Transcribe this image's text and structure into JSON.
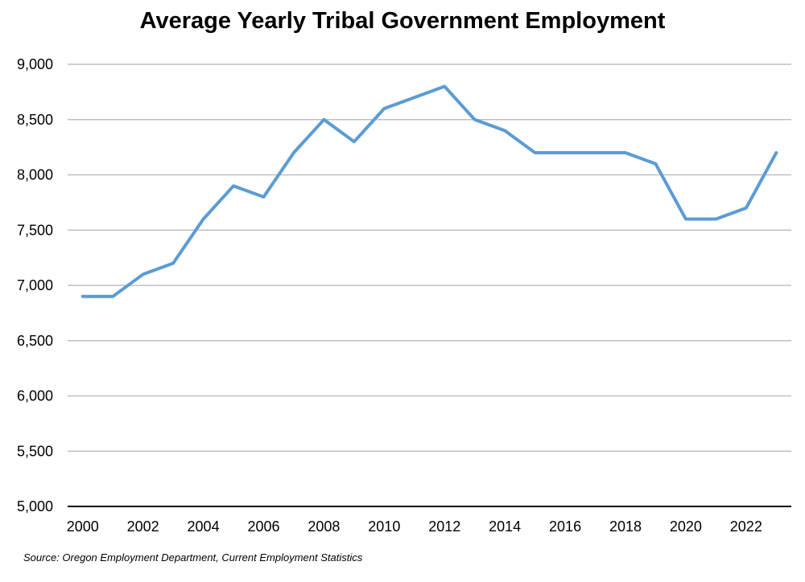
{
  "chart_data": {
    "type": "line",
    "title": "Average Yearly Tribal Government Employment",
    "xlabel": "",
    "ylabel": "",
    "ylim": [
      5000,
      9000
    ],
    "yticks": [
      5000,
      5500,
      6000,
      6500,
      7000,
      7500,
      8000,
      8500,
      9000
    ],
    "ytick_labels": [
      "5,000",
      "5,500",
      "6,000",
      "6,500",
      "7,000",
      "7,500",
      "8,000",
      "8,500",
      "9,000"
    ],
    "xtick_labels": [
      "2000",
      "2002",
      "2004",
      "2006",
      "2008",
      "2010",
      "2012",
      "2014",
      "2016",
      "2018",
      "2020",
      "2022"
    ],
    "grid": true,
    "series": [
      {
        "name": "Tribal Government Employment",
        "color": "#5b9bd5",
        "x": [
          2000,
          2001,
          2002,
          2003,
          2004,
          2005,
          2006,
          2007,
          2008,
          2009,
          2010,
          2011,
          2012,
          2013,
          2014,
          2015,
          2016,
          2017,
          2018,
          2019,
          2020,
          2021,
          2022,
          2023
        ],
        "values": [
          6900,
          6900,
          7100,
          7200,
          7600,
          7900,
          7800,
          8200,
          8500,
          8300,
          8600,
          8700,
          8800,
          8500,
          8400,
          8200,
          8200,
          8200,
          8200,
          8100,
          7600,
          7600,
          7700,
          8200
        ]
      }
    ],
    "source": "Source: Oregon Employment Department, Current Employment Statistics"
  }
}
